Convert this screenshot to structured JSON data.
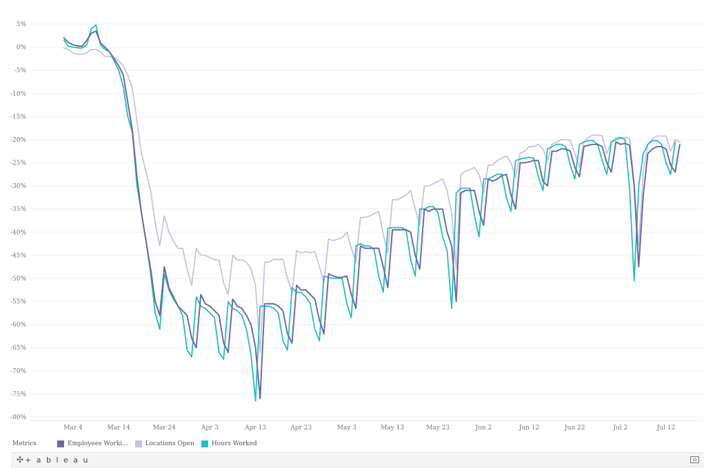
{
  "chart_data": {
    "type": "line",
    "title": "",
    "xlabel": "",
    "ylabel": "",
    "ylim": [
      -80,
      5
    ],
    "y_ticks": [
      "5%",
      "0%",
      "-5%",
      "-10%",
      "-15%",
      "-20%",
      "-25%",
      "-30%",
      "-35%",
      "-40%",
      "-45%",
      "-50%",
      "-55%",
      "-60%",
      "-65%",
      "-70%",
      "-75%",
      "-80%"
    ],
    "y_tick_values": [
      5,
      0,
      -5,
      -10,
      -15,
      -20,
      -25,
      -30,
      -35,
      -40,
      -45,
      -50,
      -55,
      -60,
      -65,
      -70,
      -75,
      -80
    ],
    "x_ticks": [
      "Mar 4",
      "Mar 14",
      "Mar 24",
      "Apr 3",
      "Apr 13",
      "Apr 23",
      "May 3",
      "May 13",
      "May 23",
      "Jun 2",
      "Jun 12",
      "Jun 22",
      "Jul 2",
      "Jul 12"
    ],
    "x_tick_days": [
      3,
      13,
      23,
      33,
      43,
      53,
      63,
      73,
      83,
      93,
      103,
      113,
      123,
      133
    ],
    "x_start": "Mar 1",
    "grid": true,
    "legend_position": "bottom-left",
    "series": [
      {
        "name": "Employees Worki...",
        "color": "#6e6a9f",
        "values": [
          2,
          1,
          0.5,
          0.3,
          0.2,
          1.5,
          3,
          3.5,
          1,
          0,
          -1,
          -2.5,
          -4,
          -6,
          -12,
          -18,
          -28,
          -36,
          -42,
          -48,
          -55,
          -58,
          -47.5,
          -52,
          -54,
          -56,
          -57,
          -58,
          -63,
          -65,
          -53.5,
          -55.5,
          -56,
          -57,
          -58,
          -64,
          -66,
          -54.5,
          -56,
          -56.5,
          -58,
          -60,
          -65,
          -76,
          -55.5,
          -55.5,
          -55.5,
          -56,
          -57,
          -62,
          -64,
          -51.5,
          -52.5,
          -52.5,
          -53.5,
          -54.5,
          -59,
          -62,
          -49,
          -49.5,
          -49.8,
          -49.8,
          -49.5,
          -53.5,
          -56.5,
          -43,
          -43.5,
          -43.5,
          -43.5,
          -43.5,
          -47.5,
          -52,
          -39.5,
          -39.5,
          -39.5,
          -39.5,
          -40,
          -45,
          -48,
          -35,
          -35.5,
          -35,
          -35,
          -35,
          -40,
          -43,
          -55,
          -31.5,
          -31,
          -31,
          -31,
          -35.5,
          -38.5,
          -28.5,
          -29,
          -28.5,
          -27.8,
          -27.5,
          -32,
          -35,
          -25,
          -25,
          -24.8,
          -24.5,
          -24.5,
          -29,
          -30,
          -22.5,
          -22.5,
          -22,
          -22,
          -22.5,
          -26,
          -28,
          -21.5,
          -21.2,
          -21,
          -21,
          -21.5,
          -25,
          -27,
          -20.5,
          -21,
          -20.8,
          -21.2,
          -30,
          -47.5,
          -32,
          -23,
          -22,
          -21.5,
          -21.5,
          -22,
          -25.5,
          -27,
          -21
        ],
        "values_note": ""
      },
      {
        "name": "Locations Open",
        "color": "#c8c1e6",
        "values": [
          -0.2,
          -0.5,
          -1.3,
          -1.5,
          -1.5,
          -1.2,
          -0.5,
          -0.5,
          -1,
          -2,
          -2,
          -2.2,
          -3,
          -4,
          -6,
          -9,
          -16,
          -23,
          -27,
          -31,
          -38,
          -43,
          -36.5,
          -40,
          -42,
          -43.5,
          -43.5,
          -48,
          -51.5,
          -43.5,
          -45,
          -45,
          -45.5,
          -46,
          -46,
          -51,
          -53.5,
          -45,
          -46,
          -46,
          -46.5,
          -48,
          -51.5,
          -66,
          -46.5,
          -46.5,
          -45.8,
          -46,
          -45.8,
          -50,
          -53,
          -44,
          -44.5,
          -44.2,
          -44.5,
          -44.2,
          -47.5,
          -51,
          -41.5,
          -41.8,
          -41.5,
          -41.2,
          -40,
          -43.5,
          -46.5,
          -36.8,
          -36.8,
          -36.5,
          -36,
          -35.5,
          -40.5,
          -44.5,
          -33,
          -33,
          -32.5,
          -32,
          -31,
          -35,
          -38.5,
          -30,
          -30,
          -29.5,
          -29,
          -28.5,
          -31,
          -36,
          -48,
          -27.5,
          -26.8,
          -26.5,
          -26,
          -27.5,
          -31.5,
          -25.5,
          -25.5,
          -24.5,
          -24,
          -23.5,
          -25,
          -28,
          -23,
          -22.5,
          -21.5,
          -21.5,
          -21,
          -22,
          -24.5,
          -21,
          -20.5,
          -20,
          -20,
          -20.2,
          -23,
          -26,
          -20.5,
          -19.5,
          -19,
          -19,
          -19.2,
          -23,
          -20.5,
          -19.5,
          -19.8,
          -19.5,
          -19.8,
          -29.5,
          -43,
          -27,
          -21,
          -19.8,
          -19.2,
          -19.2,
          -19.2,
          -22.5,
          -20,
          -20.5
        ],
        "values_note": ""
      },
      {
        "name": "Hours Worked",
        "color": "#1ebfc6",
        "values": [
          1.5,
          0.2,
          0,
          -0.1,
          -0.2,
          0.5,
          4,
          4.8,
          0.5,
          -0.5,
          -1,
          -3,
          -5,
          -8.5,
          -15,
          -18.5,
          -30,
          -36,
          -42,
          -49,
          -57.5,
          -61,
          -49,
          -52.5,
          -54.5,
          -56,
          -58,
          -65.5,
          -67,
          -54,
          -56,
          -56.5,
          -57.5,
          -58.5,
          -66,
          -67.5,
          -55,
          -56.5,
          -57,
          -58,
          -61,
          -66.5,
          -76.5,
          -56,
          -56,
          -56,
          -56.5,
          -57.5,
          -63.5,
          -65.5,
          -52,
          -53,
          -53,
          -54,
          -55.5,
          -61,
          -63.5,
          -49.5,
          -49.8,
          -50,
          -50,
          -50,
          -55.5,
          -58.5,
          -43,
          -42.5,
          -43,
          -43,
          -43.8,
          -49.5,
          -53,
          -39.2,
          -39,
          -39,
          -39,
          -39.5,
          -46,
          -49.5,
          -35,
          -35,
          -34.5,
          -34.5,
          -35.8,
          -41,
          -44,
          -56.5,
          -31.5,
          -30.5,
          -30.5,
          -30.5,
          -36.5,
          -41,
          -28.5,
          -28.5,
          -28,
          -27.5,
          -27.5,
          -32.5,
          -35.5,
          -24.5,
          -24.2,
          -24,
          -23.8,
          -24,
          -28,
          -31,
          -22,
          -21.5,
          -21,
          -21,
          -21.5,
          -25.5,
          -28.5,
          -21,
          -20.5,
          -20.2,
          -20.2,
          -21,
          -24.5,
          -27.5,
          -20.5,
          -20,
          -19.5,
          -20,
          -30.5,
          -50.5,
          -30,
          -23,
          -21,
          -20.2,
          -20.2,
          -21,
          -25,
          -27.5,
          -20.5
        ],
        "values_note": ""
      }
    ]
  },
  "legend": {
    "title": "Metrics",
    "items": [
      "Employees Worki...",
      "Locations Open",
      "Hours Worked"
    ]
  },
  "footer": {
    "brand": "+ a b l e a u",
    "icon": "tableau-logo-icon",
    "fullscreen_icon": "fullscreen-icon"
  }
}
